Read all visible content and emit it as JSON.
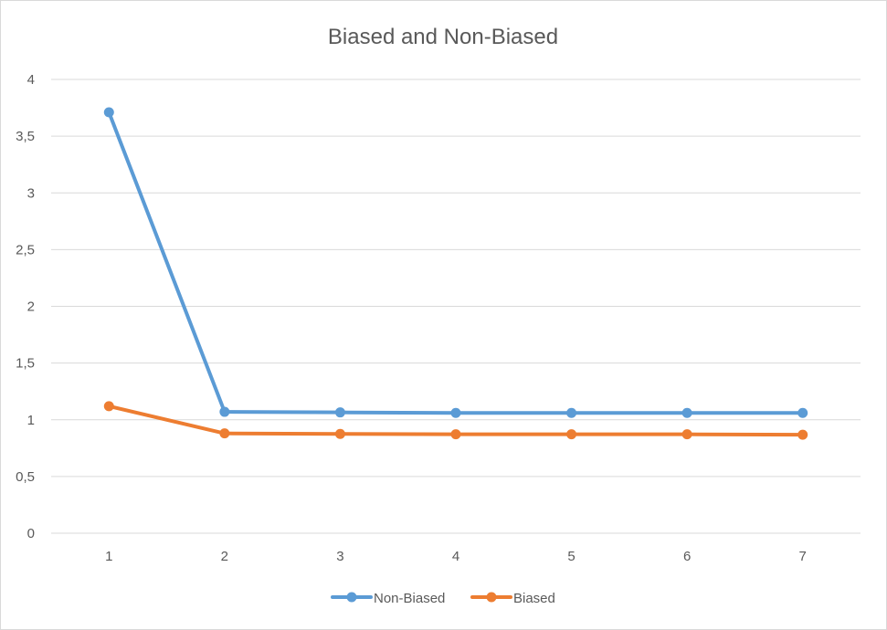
{
  "chart_data": {
    "type": "line",
    "title": "Biased and Non-Biased",
    "xlabel": "",
    "ylabel": "",
    "categories": [
      "1",
      "2",
      "3",
      "4",
      "5",
      "6",
      "7"
    ],
    "y_ticks": [
      "0",
      "0,5",
      "1",
      "1,5",
      "2",
      "2,5",
      "3",
      "3,5",
      "4"
    ],
    "ylim": [
      0,
      4
    ],
    "grid": true,
    "legend_position": "bottom",
    "series": [
      {
        "name": "Non-Biased",
        "color": "#5b9bd5",
        "values": [
          3.71,
          1.07,
          1.065,
          1.06,
          1.06,
          1.06,
          1.06
        ]
      },
      {
        "name": "Biased",
        "color": "#ed7d31",
        "values": [
          1.12,
          0.88,
          0.875,
          0.872,
          0.872,
          0.872,
          0.868
        ]
      }
    ]
  }
}
